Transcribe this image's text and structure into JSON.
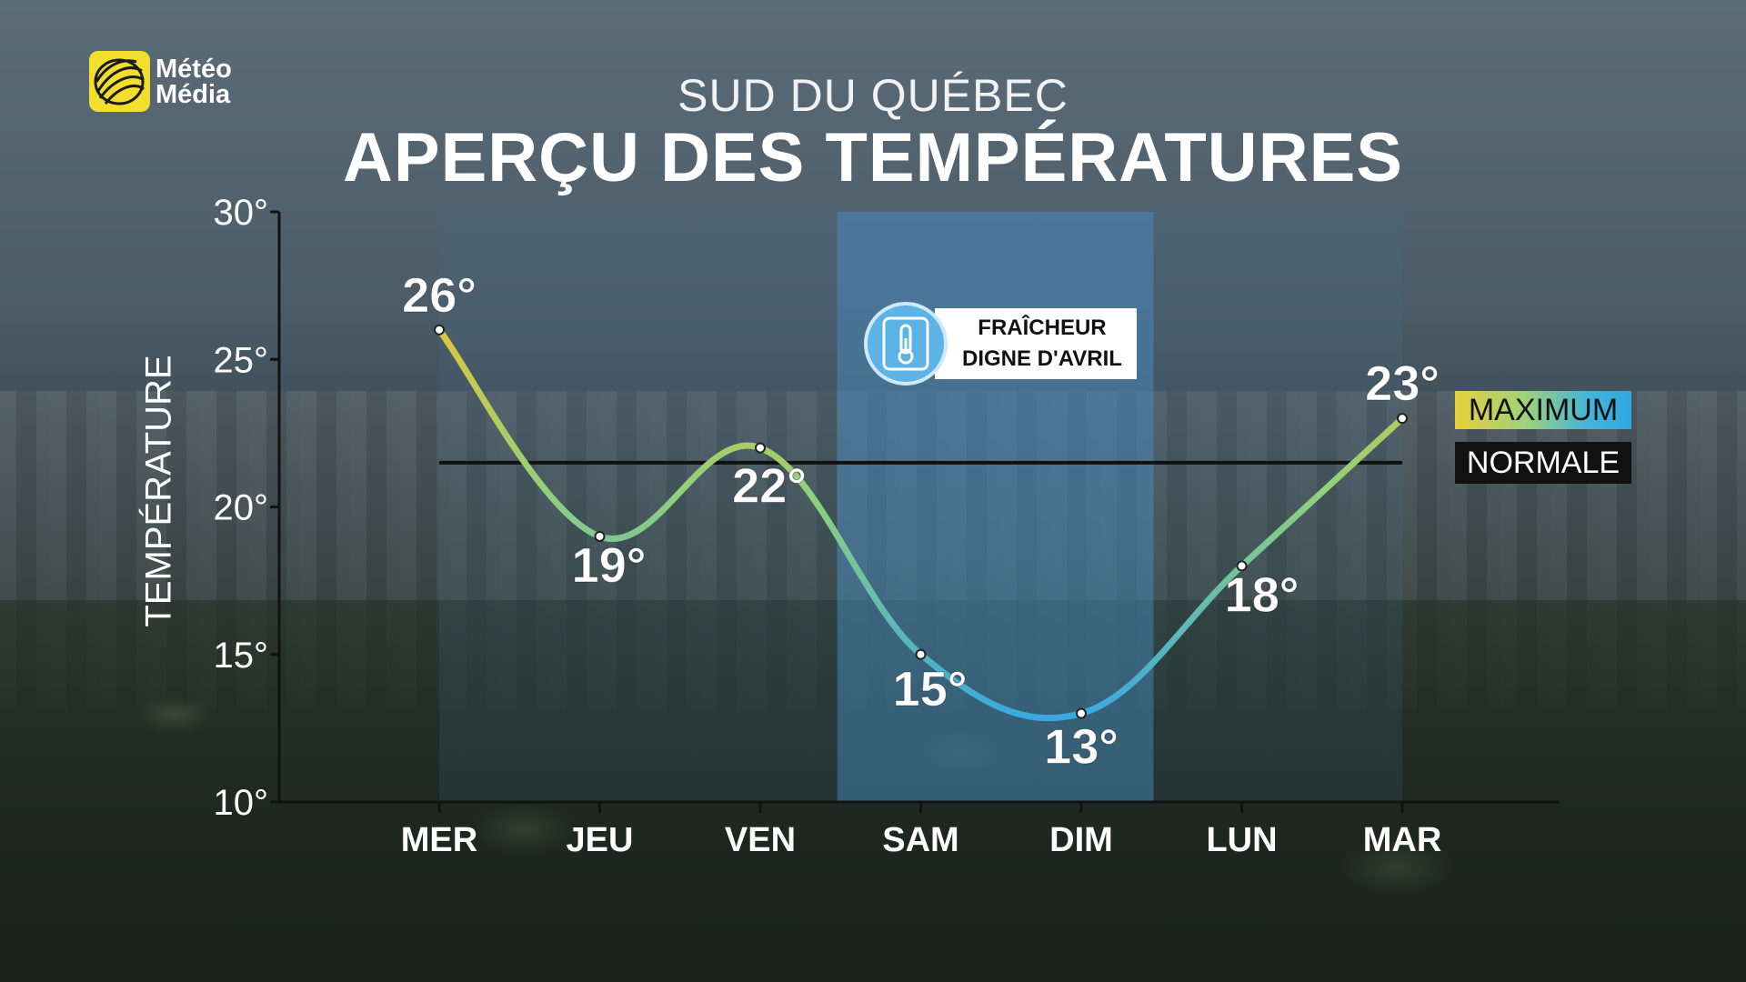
{
  "brand": {
    "name_line1": "Météo",
    "name_line2": "Média"
  },
  "header": {
    "subtitle": "SUD DU QUÉBEC",
    "title": "APERÇU DES TEMPÉRATURES"
  },
  "annotation": {
    "line1": "FRAÎCHEUR",
    "line2": "DIGNE D'AVRIL",
    "icon": "thermometer-icon"
  },
  "legend": {
    "max_label": "MAXIMUM",
    "normal_label": "NORMALE"
  },
  "colors": {
    "curve_warm": "#e3c53a",
    "curve_mid": "#8fd07d",
    "curve_cold": "#3aa9df",
    "normal_line": "#111111",
    "highlight_band": "#4a90c8",
    "brand_yellow": "#f2de2c"
  },
  "chart_data": {
    "type": "line",
    "title": "APERÇU DES TEMPÉRATURES",
    "ylabel": "TEMPÉRATURE",
    "xlabel": "",
    "ylim": [
      10,
      30
    ],
    "yticks": [
      10,
      15,
      20,
      25,
      30
    ],
    "ytick_labels": [
      "10°",
      "15°",
      "20°",
      "25°",
      "30°"
    ],
    "categories": [
      "MER",
      "JEU",
      "VEN",
      "SAM",
      "DIM",
      "LUN",
      "MAR"
    ],
    "series": [
      {
        "name": "MAXIMUM",
        "values": [
          26,
          19,
          22,
          15,
          13,
          18,
          23
        ],
        "labels": [
          "26°",
          "19°",
          "22°",
          "15°",
          "13°",
          "18°",
          "23°"
        ]
      },
      {
        "name": "NORMALE",
        "values": [
          21.5,
          21.5,
          21.5,
          21.5,
          21.5,
          21.5,
          21.5
        ]
      }
    ],
    "highlight_range": [
      "SAM",
      "DIM"
    ],
    "grid": false,
    "legend": "right"
  }
}
